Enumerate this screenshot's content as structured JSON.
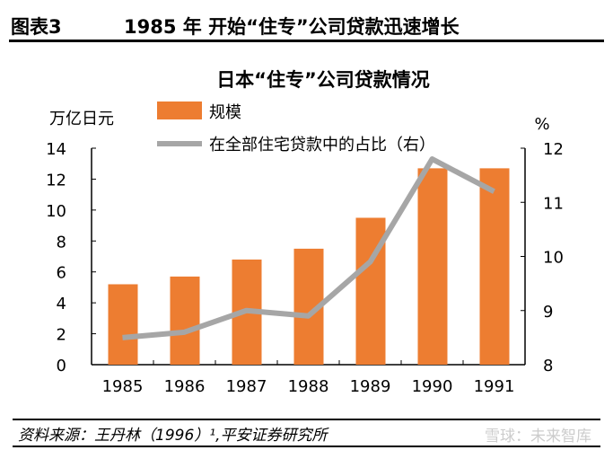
{
  "header": {
    "label": "图表3",
    "title": "1985 年 开始“住专”公司贷款迅速增长"
  },
  "footer": {
    "source": "资料来源：王丹林（1996）¹,平安证券研究所",
    "watermark": "雪球：未来智库"
  },
  "chart_data": {
    "type": "bar+line",
    "title": "日本“住专”公司贷款情况",
    "ylabel_left": "万亿日元",
    "ylabel_right": "%",
    "categories": [
      "1985",
      "1986",
      "1987",
      "1988",
      "1989",
      "1990",
      "1991"
    ],
    "series": [
      {
        "name": "规模",
        "type": "bar",
        "axis": "left",
        "color": "#ED7D31",
        "values": [
          5.2,
          5.7,
          6.8,
          7.5,
          9.5,
          12.7,
          12.7
        ]
      },
      {
        "name": "在全部住宅贷款中的占比（右）",
        "type": "line",
        "axis": "right",
        "color": "#A6A6A6",
        "values": [
          8.5,
          8.6,
          9.0,
          8.9,
          9.9,
          11.8,
          11.2
        ]
      }
    ],
    "ylim_left": [
      0,
      14
    ],
    "yticks_left": [
      "0",
      "2",
      "4",
      "6",
      "8",
      "10",
      "12",
      "14"
    ],
    "ylim_right": [
      8,
      12
    ],
    "yticks_right": [
      "8",
      "9",
      "10",
      "11",
      "12"
    ],
    "grid": false,
    "legend": "top-left"
  }
}
